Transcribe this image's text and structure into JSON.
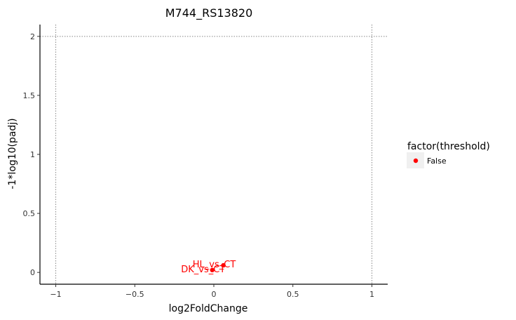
{
  "chart_data": {
    "type": "scatter",
    "title": "M744_RS13820",
    "xlabel": "log2FoldChange",
    "ylabel": "-1*log10(padj)",
    "xlim": [
      -1.1,
      1.1
    ],
    "ylim": [
      -0.1,
      2.1
    ],
    "xticks": [
      -1,
      -0.5,
      0,
      0.5,
      1
    ],
    "xtick_labels": [
      "−1",
      "−0.5",
      "0",
      "0.5",
      "1"
    ],
    "yticks": [
      0,
      0.5,
      1,
      1.5,
      2
    ],
    "ytick_labels": [
      "0",
      "0.5",
      "1",
      "1.5",
      "2"
    ],
    "reference_lines": {
      "x": [
        -1,
        1
      ],
      "y": [
        2
      ],
      "style": "dotted"
    },
    "grid": false,
    "legend": {
      "title": "factor(threshold)",
      "position": "right",
      "entries": [
        "False"
      ]
    },
    "series": [
      {
        "name": "False",
        "color": "#ff0000",
        "points": [
          {
            "x": 0.06,
            "y": 0.06,
            "label": "HL_vs_CT"
          },
          {
            "x": -0.01,
            "y": 0.02,
            "label": "DK_vs_CT"
          }
        ]
      }
    ]
  }
}
